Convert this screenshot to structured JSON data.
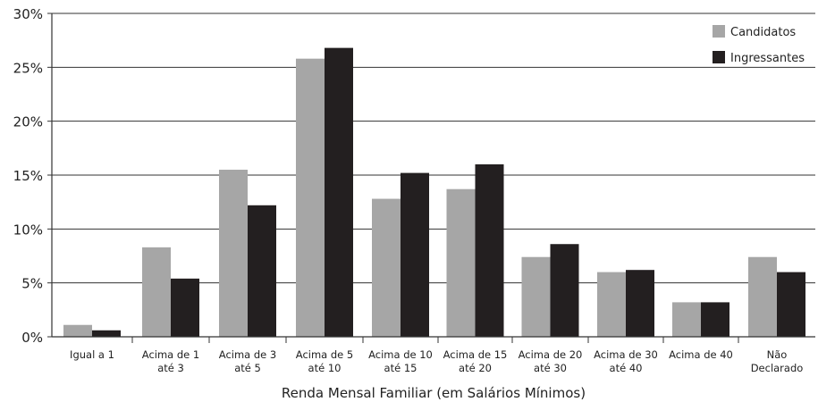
{
  "chart_data": {
    "type": "bar",
    "title": "",
    "xlabel": "Renda Mensal Familiar (em Salários Mínimos)",
    "ylabel": "",
    "ylim": [
      0,
      30
    ],
    "yticks": [
      "0%",
      "5%",
      "10%",
      "15%",
      "20%",
      "25%",
      "30%"
    ],
    "grid": "horizontal",
    "legend_position": "top-right",
    "categories": [
      [
        "Igual a 1"
      ],
      [
        "Acima de 1",
        "até 3"
      ],
      [
        "Acima de 3",
        "até 5"
      ],
      [
        "Acima de 5",
        "até 10"
      ],
      [
        "Acima de 10",
        "até 15"
      ],
      [
        "Acima de 15",
        "até 20"
      ],
      [
        "Acima de 20",
        "até 30"
      ],
      [
        "Acima de 30",
        "até 40"
      ],
      [
        "Acima de 40"
      ],
      [
        "Não",
        "Declarado"
      ]
    ],
    "series": [
      {
        "name": "Candidatos",
        "color": "#a6a6a6",
        "values": [
          1.1,
          8.3,
          15.5,
          25.8,
          12.8,
          13.7,
          7.4,
          6.0,
          3.2,
          7.4
        ]
      },
      {
        "name": "Ingressantes",
        "color": "#231f20",
        "values": [
          0.6,
          5.4,
          12.2,
          26.8,
          15.2,
          16.0,
          8.6,
          6.2,
          3.2,
          6.0
        ]
      }
    ]
  }
}
